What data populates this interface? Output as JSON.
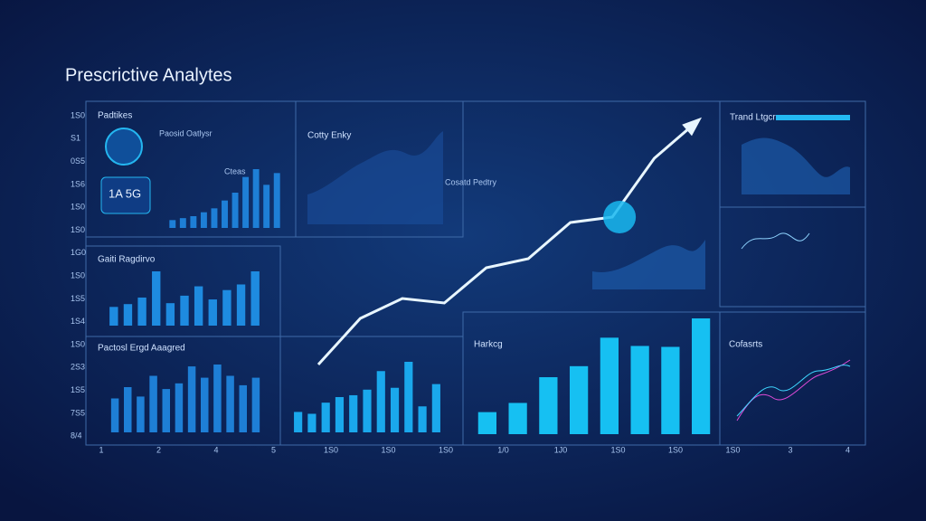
{
  "header": {
    "title": "Prescrictive Analytes"
  },
  "texts": [
    "Padtikes",
    "Paosid Oatlysr",
    "Cotty Enky",
    "Cosatd Pedtry",
    "Trand Ltgcr",
    "Gaiti Ragdirvo",
    "Pactosl Ergd Aaagred",
    "Harkcg",
    "Cofasrts",
    "1A 5G",
    "Cteas"
  ],
  "left_labels": [
    "1S0",
    "S1",
    "0S5",
    "1S6",
    "1S0",
    "1S0",
    "1G0",
    "1S0",
    "1S5",
    "1S4",
    "1S0",
    "2S3",
    "1S5",
    "7S5",
    "8/4"
  ],
  "bottom_labels": [
    "1",
    "2",
    "4",
    "5",
    "1S0",
    "1S0",
    "1S0",
    "1/0",
    "1J0",
    "1S0",
    "1S0",
    "1S0",
    "3",
    "4"
  ],
  "chart_data": [
    {
      "type": "bar",
      "values": [
        4,
        5,
        6,
        8,
        10,
        14,
        18,
        26,
        30,
        22,
        28
      ],
      "color": "#1e7fd6"
    },
    {
      "type": "bar",
      "values": [
        20,
        23,
        30,
        58,
        24,
        32,
        42,
        28,
        38,
        44,
        58
      ],
      "color": "#1e8be0"
    },
    {
      "type": "bar",
      "values": [
        36,
        48,
        38,
        60,
        46,
        52,
        70,
        58,
        72,
        60,
        50,
        58
      ],
      "color": "#1e7fd6"
    },
    {
      "type": "bar",
      "values": [
        22,
        20,
        32,
        38,
        40,
        46,
        66,
        48,
        76,
        28,
        52
      ],
      "color": "#1aa8ec"
    },
    {
      "type": "bar",
      "values": [
        24,
        34,
        62,
        74,
        105,
        96,
        95,
        126
      ],
      "color": "#16c0f2"
    },
    {
      "type": "line",
      "values": [
        27,
        78,
        100,
        95,
        134,
        144,
        184,
        190,
        255,
        295
      ],
      "color": "#e8f6ff"
    }
  ]
}
